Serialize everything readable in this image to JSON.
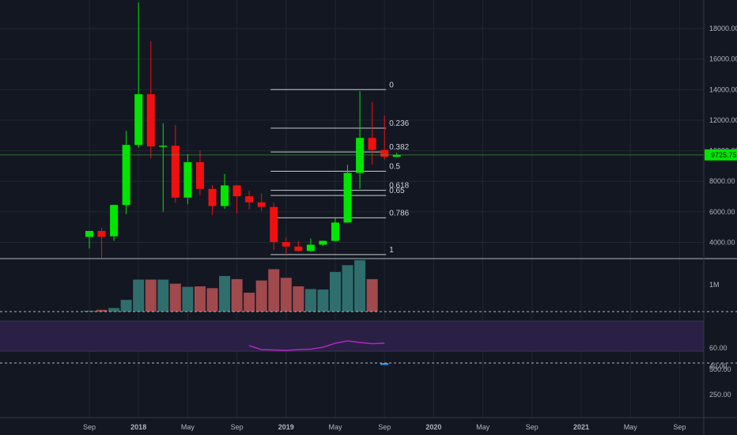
{
  "colors": {
    "background": "#131722",
    "grid": "#232632",
    "pane_separator": "#b2b5be",
    "up": "#00e600",
    "down": "#f01010",
    "volume_up": "#2f6e6d",
    "volume_down": "#a04a4d",
    "rsi_line": "#b225c3",
    "rsi_band": "#2a1f45",
    "price_line": "#3fb83f",
    "fib_line": "#c8cad0",
    "third_pane_marker": "#2196f3"
  },
  "price_axis": {
    "labels": [
      "18000.00",
      "16000.00",
      "14000.00",
      "12000.00",
      "10000.00",
      "8000.00",
      "6000.00",
      "4000.00"
    ],
    "values": [
      18000,
      16000,
      14000,
      12000,
      10000,
      8000,
      6000,
      4000
    ],
    "current_price": "9725.75",
    "current_price_value": 9725.75
  },
  "volume_axis": {
    "labels": [
      "1M"
    ],
    "values": [
      1000000
    ]
  },
  "rsi_axis": {
    "labels": [
      "60.00",
      "40.00"
    ],
    "values": [
      60,
      40
    ]
  },
  "third_axis": {
    "labels": [
      "500.00",
      "250.00"
    ],
    "values": [
      500,
      250
    ]
  },
  "time_axis": {
    "labels": [
      "Sep",
      "2018",
      "May",
      "Sep",
      "2019",
      "May",
      "Sep",
      "2020",
      "May",
      "Sep",
      "2021",
      "May",
      "Sep"
    ],
    "label_month_index": [
      0,
      4,
      8,
      12,
      16,
      20,
      24,
      28,
      32,
      36,
      40,
      44,
      48
    ],
    "bold": [
      false,
      true,
      false,
      false,
      true,
      false,
      false,
      true,
      false,
      false,
      true,
      false,
      false
    ]
  },
  "fibonacci": {
    "levels": [
      "0",
      "0.236",
      "0.382",
      "0.5",
      "0.618",
      "0.65",
      "0.786",
      "1"
    ],
    "prices": [
      14000,
      11480,
      9920,
      8660,
      7410,
      7070,
      5610,
      3200
    ],
    "start_month": 15,
    "end_month": 24
  },
  "chart_data": {
    "type": "candlestick",
    "interval": "monthly",
    "month_index_note_hidden": true,
    "months": [
      "2017-08",
      "2017-09",
      "2017-10",
      "2017-11",
      "2017-12",
      "2018-01",
      "2018-02",
      "2018-03",
      "2018-04",
      "2018-05",
      "2018-06",
      "2018-07",
      "2018-08",
      "2018-09",
      "2018-10",
      "2018-11",
      "2018-12",
      "2019-01",
      "2019-02",
      "2019-03",
      "2019-04",
      "2019-05",
      "2019-06",
      "2019-07",
      "2019-08",
      "2019-09"
    ],
    "candles": [
      {
        "o": 4360,
        "h": 4740,
        "l": 3600,
        "c": 4750
      },
      {
        "o": 4750,
        "h": 4960,
        "l": 2980,
        "c": 4360
      },
      {
        "o": 4400,
        "h": 6470,
        "l": 4100,
        "c": 6450
      },
      {
        "o": 6450,
        "h": 11300,
        "l": 5850,
        "c": 10380
      },
      {
        "o": 10380,
        "h": 19700,
        "l": 10200,
        "c": 13700
      },
      {
        "o": 13700,
        "h": 17150,
        "l": 9500,
        "c": 10280
      },
      {
        "o": 10280,
        "h": 11800,
        "l": 6000,
        "c": 10330
      },
      {
        "o": 10330,
        "h": 11680,
        "l": 6600,
        "c": 6930
      },
      {
        "o": 6930,
        "h": 9770,
        "l": 6500,
        "c": 9250
      },
      {
        "o": 9250,
        "h": 10000,
        "l": 7080,
        "c": 7500
      },
      {
        "o": 7500,
        "h": 7750,
        "l": 5800,
        "c": 6380
      },
      {
        "o": 6380,
        "h": 8480,
        "l": 6200,
        "c": 7730
      },
      {
        "o": 7730,
        "h": 7750,
        "l": 5880,
        "c": 7020
      },
      {
        "o": 7020,
        "h": 7400,
        "l": 6160,
        "c": 6620
      },
      {
        "o": 6620,
        "h": 7200,
        "l": 6050,
        "c": 6320
      },
      {
        "o": 6320,
        "h": 6600,
        "l": 3500,
        "c": 4020
      },
      {
        "o": 4020,
        "h": 4320,
        "l": 3200,
        "c": 3730
      },
      {
        "o": 3730,
        "h": 4100,
        "l": 3400,
        "c": 3440
      },
      {
        "o": 3440,
        "h": 4250,
        "l": 3380,
        "c": 3850
      },
      {
        "o": 3850,
        "h": 4120,
        "l": 3750,
        "c": 4100
      },
      {
        "o": 4100,
        "h": 5600,
        "l": 4050,
        "c": 5300
      },
      {
        "o": 5300,
        "h": 9080,
        "l": 5280,
        "c": 8550
      },
      {
        "o": 8550,
        "h": 13900,
        "l": 7500,
        "c": 10840
      },
      {
        "o": 10840,
        "h": 13200,
        "l": 9100,
        "c": 10050
      },
      {
        "o": 10050,
        "h": 12300,
        "l": 9400,
        "c": 9600
      },
      {
        "o": 9600,
        "h": 9880,
        "l": 9600,
        "c": 9726
      }
    ],
    "volume": [
      20000,
      40000,
      80000,
      260000,
      710000,
      710000,
      710000,
      620000,
      550000,
      560000,
      520000,
      790000,
      720000,
      420000,
      690000,
      940000,
      750000,
      560000,
      500000,
      490000,
      880000,
      1030000,
      1140000,
      720000,
      0,
      0
    ],
    "rsi": {
      "start_month": 13,
      "values": [
        63,
        58,
        57.5,
        57,
        58,
        58.5,
        61,
        66,
        69,
        67,
        65.5,
        66
      ]
    }
  }
}
